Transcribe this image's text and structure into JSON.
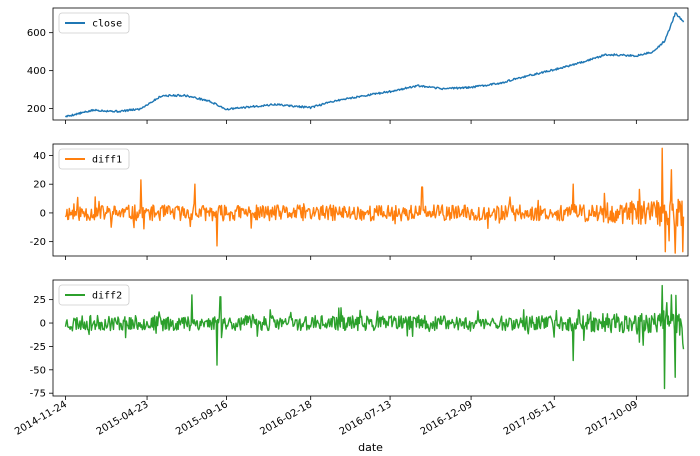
{
  "chart_data": [
    {
      "type": "line",
      "series": [
        {
          "name": "close",
          "color": "#1f77b4"
        }
      ],
      "ylim": [
        140,
        730
      ],
      "yticks": [
        200,
        400,
        600
      ],
      "xlim": [
        "2014-11-01",
        "2018-01-12"
      ],
      "legend": "top-left",
      "grid": false,
      "x": [
        "2014-11-24",
        "2015-01-15",
        "2015-03-01",
        "2015-04-10",
        "2015-05-20",
        "2015-07-01",
        "2015-08-15",
        "2015-09-16",
        "2015-11-01",
        "2015-12-15",
        "2016-02-18",
        "2016-04-01",
        "2016-05-20",
        "2016-07-13",
        "2016-09-01",
        "2016-10-15",
        "2016-12-09",
        "2017-02-01",
        "2017-03-20",
        "2017-05-11",
        "2017-07-01",
        "2017-08-15",
        "2017-10-09",
        "2017-11-10",
        "2017-12-01",
        "2017-12-20",
        "2018-01-05"
      ],
      "values": [
        158,
        192,
        185,
        198,
        268,
        270,
        240,
        196,
        210,
        222,
        205,
        240,
        265,
        290,
        320,
        305,
        312,
        335,
        370,
        405,
        445,
        485,
        478,
        500,
        560,
        705,
        650
      ]
    },
    {
      "type": "line",
      "series": [
        {
          "name": "diff1",
          "color": "#ff7f0e",
          "seed": 11,
          "amp": 5.5
        }
      ],
      "ylim": [
        -30,
        48
      ],
      "yticks": [
        -20,
        0,
        20,
        40
      ],
      "xlim": [
        "2014-11-01",
        "2018-01-12"
      ],
      "legend": "top-left",
      "grid": false,
      "spikes": [
        {
          "x": "2015-04-12",
          "value": 23
        },
        {
          "x": "2015-07-20",
          "value": 20
        },
        {
          "x": "2015-08-30",
          "value": -23
        },
        {
          "x": "2016-09-10",
          "value": 18
        },
        {
          "x": "2017-06-15",
          "value": 20
        },
        {
          "x": "2017-11-26",
          "value": 45
        },
        {
          "x": "2017-12-01",
          "value": -27
        },
        {
          "x": "2017-12-12",
          "value": 30
        },
        {
          "x": "2017-12-20",
          "value": -28
        },
        {
          "x": "2018-01-03",
          "value": -27
        }
      ]
    },
    {
      "type": "line",
      "series": [
        {
          "name": "diff2",
          "color": "#2ca02c",
          "seed": 23,
          "amp": 8
        }
      ],
      "ylim": [
        -78,
        46
      ],
      "yticks": [
        -75,
        -50,
        -25,
        0,
        25
      ],
      "xlim": [
        "2014-11-01",
        "2018-01-12"
      ],
      "legend": "top-left",
      "grid": false,
      "xlabel": "date",
      "xticks": [
        "2014-11-24",
        "2015-04-23",
        "2015-09-16",
        "2016-02-18",
        "2016-07-13",
        "2016-12-09",
        "2017-05-11",
        "2017-10-09"
      ],
      "spikes": [
        {
          "x": "2015-07-15",
          "value": 30
        },
        {
          "x": "2015-08-30",
          "value": -45
        },
        {
          "x": "2015-09-05",
          "value": 28
        },
        {
          "x": "2017-06-15",
          "value": -40
        },
        {
          "x": "2017-11-26",
          "value": 40
        },
        {
          "x": "2017-11-30",
          "value": -70
        },
        {
          "x": "2017-12-12",
          "value": 30
        },
        {
          "x": "2017-12-20",
          "value": -58
        },
        {
          "x": "2018-01-03",
          "value": -22
        }
      ]
    }
  ]
}
